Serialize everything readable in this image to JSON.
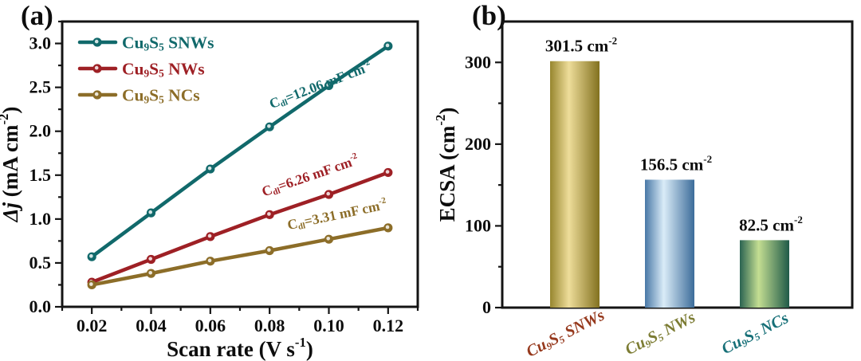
{
  "panels": {
    "a": {
      "label": "(a)"
    },
    "b": {
      "label": "(b)"
    }
  },
  "chart_data": [
    {
      "type": "line",
      "panel": "a",
      "title": "",
      "xlabel": "Scan rate (V s-1)",
      "xlabel_parts": [
        [
          "Scan rate (V s"
        ],
        [
          "-1",
          "sup"
        ],
        [
          ")"
        ]
      ],
      "ylabel": "Dj (mA cm-2)",
      "ylabel_parts": [
        [
          "Δj",
          "italic"
        ],
        [
          " (mA cm"
        ],
        [
          "-2",
          "sup"
        ],
        [
          ")"
        ]
      ],
      "xlim": [
        0.01,
        0.13
      ],
      "ylim": [
        0,
        3.25
      ],
      "x": [
        0.02,
        0.04,
        0.06,
        0.08,
        0.1,
        0.12
      ],
      "xticks": [
        0.02,
        0.04,
        0.06,
        0.08,
        0.1,
        0.12
      ],
      "xtick_labels": [
        "0.02",
        "0.04",
        "0.06",
        "0.08",
        "0.10",
        "0.12"
      ],
      "x_minor": [
        0.01,
        0.03,
        0.05,
        0.07,
        0.09,
        0.11,
        0.13
      ],
      "yticks": [
        0,
        0.5,
        1.0,
        1.5,
        2.0,
        2.5,
        3.0
      ],
      "ytick_labels": [
        "0.0",
        "0.5",
        "1.0",
        "1.5",
        "2.0",
        "2.5",
        "3.0"
      ],
      "y_minor": [
        0.25,
        0.75,
        1.25,
        1.75,
        2.25,
        2.75,
        3.25
      ],
      "grid": false,
      "legend_position": "top-left",
      "series": [
        {
          "name": "Cu9S5 SNWs",
          "name_parts": [
            [
              "Cu"
            ],
            [
              "9",
              "sub"
            ],
            [
              "S"
            ],
            [
              "5",
              "sub"
            ],
            [
              " SNWs"
            ]
          ],
          "color": "#11696b",
          "values": [
            0.57,
            1.07,
            1.57,
            2.05,
            2.52,
            2.97
          ],
          "annotation": "Cdl=12.06 mF cm-2",
          "annotation_parts": [
            [
              "C"
            ],
            [
              "dl",
              "sub"
            ],
            [
              "=12.06 mF cm"
            ],
            [
              "-2",
              "sup"
            ]
          ],
          "annotation_center": [
            404,
            112
          ],
          "annotation_rotation": -21
        },
        {
          "name": "Cu9S5 NWs",
          "name_parts": [
            [
              "Cu"
            ],
            [
              "9",
              "sub"
            ],
            [
              "S"
            ],
            [
              "5",
              "sub"
            ],
            [
              " NWs"
            ]
          ],
          "color": "#9e2025",
          "values": [
            0.28,
            0.54,
            0.8,
            1.05,
            1.28,
            1.53
          ],
          "annotation": "Cdl=6.26 mF cm-2",
          "annotation_parts": [
            [
              "C"
            ],
            [
              "dl",
              "sub"
            ],
            [
              "=6.26 mF cm"
            ],
            [
              "-2",
              "sup"
            ]
          ],
          "annotation_center": [
            391,
            226
          ],
          "annotation_rotation": -19
        },
        {
          "name": "Cu9S5 NCs",
          "name_parts": [
            [
              "Cu"
            ],
            [
              "9",
              "sub"
            ],
            [
              "S"
            ],
            [
              "5",
              "sub"
            ],
            [
              " NCs"
            ]
          ],
          "color": "#8c6d28",
          "values": [
            0.25,
            0.38,
            0.52,
            0.64,
            0.77,
            0.9
          ],
          "annotation": "Cdl=3.31 mF cm-2",
          "annotation_parts": [
            [
              "C"
            ],
            [
              "dl",
              "sub"
            ],
            [
              "=3.31 mF cm"
            ],
            [
              "-2",
              "sup"
            ]
          ],
          "annotation_center": [
            424,
            275
          ],
          "annotation_rotation": -12
        }
      ]
    },
    {
      "type": "bar",
      "panel": "b",
      "title": "",
      "xlabel": "",
      "ylabel": "ECSA (cm-2)",
      "ylabel_parts": [
        [
          "ECSA (cm"
        ],
        [
          "-2",
          "sup"
        ],
        [
          ")"
        ]
      ],
      "ylim": [
        0,
        350
      ],
      "yticks": [
        0,
        100,
        200,
        300
      ],
      "ytick_labels": [
        "0",
        "100",
        "200",
        "300"
      ],
      "y_minor": [
        50,
        150,
        250
      ],
      "grid": false,
      "categories": [
        "Cu9S5 SNWs",
        "Cu9S5 NWs",
        "Cu9S5 NCs"
      ],
      "values": [
        301.5,
        156.5,
        82.5
      ],
      "bars": [
        {
          "category": "Cu9S5 SNWs",
          "category_parts": [
            [
              "Cu"
            ],
            [
              "9",
              "sub"
            ],
            [
              "S"
            ],
            [
              "5",
              "sub"
            ],
            [
              " SNWs"
            ]
          ],
          "label_color": "#96391d",
          "value": 301.5,
          "value_label": "301.5 cm-2",
          "value_label_parts": [
            [
              "301.5 cm"
            ],
            [
              "-2",
              "sup"
            ]
          ],
          "gradient": [
            "#97862e",
            "#eedd9a",
            "#82711f"
          ]
        },
        {
          "category": "Cu9S5 NWs",
          "category_parts": [
            [
              "Cu"
            ],
            [
              "9",
              "sub"
            ],
            [
              "S"
            ],
            [
              "5",
              "sub"
            ],
            [
              " NWs"
            ]
          ],
          "label_color": "#7c7c33",
          "value": 156.5,
          "value_label": "156.5 cm-2",
          "value_label_parts": [
            [
              "156.5 cm"
            ],
            [
              "-2",
              "sup"
            ]
          ],
          "gradient": [
            "#4978a6",
            "#daecf8",
            "#3c6c9a"
          ]
        },
        {
          "category": "Cu9S5 NCs",
          "category_parts": [
            [
              "Cu"
            ],
            [
              "9",
              "sub"
            ],
            [
              "S"
            ],
            [
              "5",
              "sub"
            ],
            [
              " NCs"
            ]
          ],
          "label_color": "#177078",
          "value": 82.5,
          "value_label": "82.5 cm-2",
          "value_label_parts": [
            [
              "82.5 cm"
            ],
            [
              "-2",
              "sup"
            ]
          ],
          "gradient": [
            "#2a6351",
            "#c4de92",
            "#1f5a48"
          ]
        }
      ]
    }
  ]
}
